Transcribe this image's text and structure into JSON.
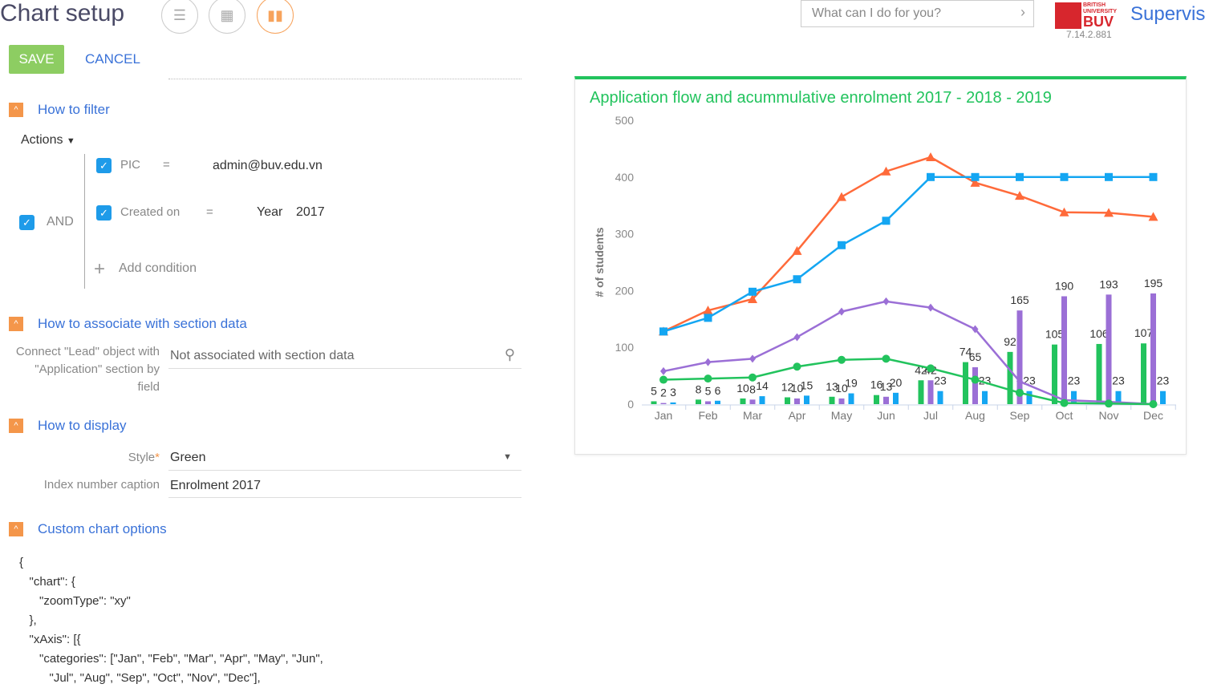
{
  "header": {
    "title": "Chart setup",
    "save": "SAVE",
    "cancel": "CANCEL",
    "search_placeholder": "What can I do for you?",
    "version": "7.14.2.881",
    "logo_text": "BRITISH UNIVERSITY VIETNAM BUV",
    "user": "Supervis"
  },
  "filter": {
    "title": "How to filter",
    "actions": "Actions",
    "group": "AND",
    "conditions": [
      {
        "field": "PIC",
        "op": "=",
        "value": "admin@buv.edu.vn"
      },
      {
        "field": "Created on",
        "op": "=",
        "value_prefix": "Year",
        "value": "2017"
      }
    ],
    "add": "Add condition"
  },
  "assoc": {
    "title": "How to associate with section data",
    "label": "Connect \"Lead\" object with \"Application\" section by field",
    "value": "Not associated with section data"
  },
  "display": {
    "title": "How to display",
    "style_label": "Style",
    "style_value": "Green",
    "caption_label": "Index number caption",
    "caption_value": "Enrolment 2017"
  },
  "custom": {
    "title": "Custom chart options",
    "code": [
      "{",
      "   \"chart\": {",
      "      \"zoomType\": \"xy\"",
      "   },",
      "   \"xAxis\": [{",
      "      \"categories\": [\"Jan\", \"Feb\", \"Mar\", \"Apr\", \"May\", \"Jun\",",
      "         \"Jul\", \"Aug\", \"Sep\", \"Oct\", \"Nov\", \"Dec\"],"
    ]
  },
  "chart_data": {
    "type": "bar+line",
    "title": "Application flow and acummulative enrolment 2017 - 2018 - 2019",
    "ylabel": "# of students",
    "ylim": [
      0,
      500
    ],
    "yticks": [
      0,
      100,
      200,
      300,
      400,
      500
    ],
    "categories": [
      "Jan",
      "Feb",
      "Mar",
      "Apr",
      "May",
      "Jun",
      "Jul",
      "Aug",
      "Sep",
      "Oct",
      "Nov",
      "Dec"
    ],
    "bars": [
      {
        "color": "#22c35d",
        "values": [
          5,
          8,
          10,
          12,
          13,
          16,
          42,
          74,
          92,
          105,
          106,
          107
        ]
      },
      {
        "color": "#9b6fd6",
        "values": [
          2,
          5,
          8,
          10,
          10,
          13,
          42,
          65,
          165,
          190,
          193,
          195
        ]
      },
      {
        "color": "#14a6f2",
        "values": [
          3,
          6,
          14,
          15,
          19,
          20,
          23,
          23,
          23,
          23,
          23,
          23
        ]
      }
    ],
    "lines": [
      {
        "color": "#ff6a3a",
        "marker": "triangle",
        "values": [
          128,
          165,
          185,
          270,
          365,
          410,
          435,
          390,
          367,
          338,
          337,
          330
        ]
      },
      {
        "color": "#14a6f2",
        "marker": "square",
        "values": [
          128,
          152,
          198,
          220,
          280,
          323,
          400,
          400,
          400,
          400,
          400,
          400
        ]
      },
      {
        "color": "#9b6fd6",
        "marker": "diamond",
        "values": [
          58,
          74,
          80,
          118,
          163,
          181,
          170,
          132,
          40,
          7,
          4,
          0
        ]
      },
      {
        "color": "#22c35d",
        "marker": "circle",
        "values": [
          43,
          45,
          47,
          66,
          78,
          80,
          63,
          43,
          20,
          2,
          1,
          0
        ]
      }
    ]
  }
}
